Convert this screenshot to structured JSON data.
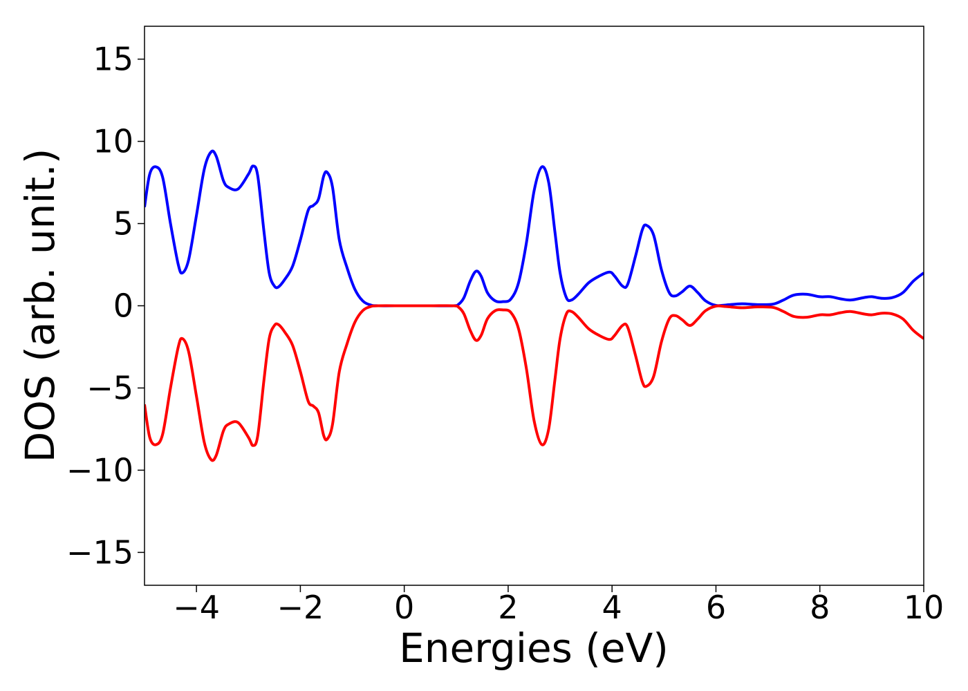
{
  "chart_data": {
    "type": "line",
    "title": "",
    "xlabel": "Energies (eV)",
    "ylabel": "DOS (arb. unit.)",
    "xlim": [
      -5,
      10
    ],
    "ylim": [
      -17,
      17
    ],
    "x_ticks": [
      -4,
      -2,
      0,
      2,
      4,
      6,
      8,
      10
    ],
    "x_tick_labels": [
      "−4",
      "−2",
      "0",
      "2",
      "4",
      "6",
      "8",
      "10"
    ],
    "y_ticks": [
      -15,
      -10,
      -5,
      0,
      5,
      10,
      15
    ],
    "y_tick_labels": [
      "−15",
      "−10",
      "−5",
      "0",
      "5",
      "10",
      "15"
    ],
    "grid": false,
    "legend": "none",
    "series": [
      {
        "color": "#0000ff",
        "points": [
          [
            -5.0,
            6.0
          ],
          [
            -4.9,
            8.0
          ],
          [
            -4.78,
            8.45
          ],
          [
            -4.65,
            7.8
          ],
          [
            -4.5,
            5.0
          ],
          [
            -4.35,
            2.5
          ],
          [
            -4.27,
            2.0
          ],
          [
            -4.15,
            2.8
          ],
          [
            -4.0,
            5.5
          ],
          [
            -3.85,
            8.3
          ],
          [
            -3.72,
            9.35
          ],
          [
            -3.62,
            9.1
          ],
          [
            -3.48,
            7.6
          ],
          [
            -3.38,
            7.2
          ],
          [
            -3.2,
            7.1
          ],
          [
            -3.0,
            8.0
          ],
          [
            -2.91,
            8.5
          ],
          [
            -2.82,
            7.9
          ],
          [
            -2.7,
            4.5
          ],
          [
            -2.6,
            2.0
          ],
          [
            -2.5,
            1.2
          ],
          [
            -2.42,
            1.15
          ],
          [
            -2.3,
            1.6
          ],
          [
            -2.15,
            2.4
          ],
          [
            -2.0,
            4.0
          ],
          [
            -1.85,
            5.8
          ],
          [
            -1.75,
            6.1
          ],
          [
            -1.65,
            6.5
          ],
          [
            -1.55,
            7.9
          ],
          [
            -1.48,
            8.1
          ],
          [
            -1.38,
            7.2
          ],
          [
            -1.25,
            4.0
          ],
          [
            -1.1,
            2.3
          ],
          [
            -0.95,
            1.0
          ],
          [
            -0.8,
            0.3
          ],
          [
            -0.65,
            0.05
          ],
          [
            -0.5,
            0.0
          ],
          [
            0.0,
            0.0
          ],
          [
            0.5,
            0.0
          ],
          [
            0.95,
            0.0
          ],
          [
            1.05,
            0.1
          ],
          [
            1.15,
            0.5
          ],
          [
            1.27,
            1.5
          ],
          [
            1.38,
            2.1
          ],
          [
            1.48,
            1.8
          ],
          [
            1.6,
            0.8
          ],
          [
            1.75,
            0.3
          ],
          [
            1.9,
            0.25
          ],
          [
            2.05,
            0.4
          ],
          [
            2.2,
            1.4
          ],
          [
            2.35,
            3.8
          ],
          [
            2.5,
            7.0
          ],
          [
            2.65,
            8.45
          ],
          [
            2.78,
            7.5
          ],
          [
            2.9,
            4.5
          ],
          [
            3.0,
            2.0
          ],
          [
            3.12,
            0.5
          ],
          [
            3.22,
            0.35
          ],
          [
            3.35,
            0.7
          ],
          [
            3.55,
            1.4
          ],
          [
            3.75,
            1.8
          ],
          [
            3.95,
            2.05
          ],
          [
            4.05,
            1.8
          ],
          [
            4.2,
            1.2
          ],
          [
            4.3,
            1.3
          ],
          [
            4.45,
            3.0
          ],
          [
            4.58,
            4.6
          ],
          [
            4.66,
            4.9
          ],
          [
            4.8,
            4.3
          ],
          [
            4.95,
            2.2
          ],
          [
            5.1,
            0.8
          ],
          [
            5.22,
            0.6
          ],
          [
            5.35,
            0.85
          ],
          [
            5.5,
            1.2
          ],
          [
            5.65,
            0.8
          ],
          [
            5.8,
            0.3
          ],
          [
            6.0,
            0.02
          ],
          [
            6.2,
            0.05
          ],
          [
            6.5,
            0.12
          ],
          [
            6.8,
            0.07
          ],
          [
            7.1,
            0.1
          ],
          [
            7.3,
            0.35
          ],
          [
            7.5,
            0.65
          ],
          [
            7.75,
            0.7
          ],
          [
            8.0,
            0.55
          ],
          [
            8.2,
            0.55
          ],
          [
            8.4,
            0.42
          ],
          [
            8.6,
            0.35
          ],
          [
            8.85,
            0.5
          ],
          [
            9.0,
            0.55
          ],
          [
            9.2,
            0.45
          ],
          [
            9.4,
            0.5
          ],
          [
            9.6,
            0.8
          ],
          [
            9.8,
            1.5
          ],
          [
            10.0,
            2.0
          ]
        ]
      },
      {
        "color": "#ff0000",
        "points": [
          [
            -5.0,
            -6.0
          ],
          [
            -4.9,
            -8.0
          ],
          [
            -4.78,
            -8.45
          ],
          [
            -4.65,
            -7.8
          ],
          [
            -4.5,
            -5.0
          ],
          [
            -4.35,
            -2.5
          ],
          [
            -4.27,
            -2.0
          ],
          [
            -4.15,
            -2.8
          ],
          [
            -4.0,
            -5.5
          ],
          [
            -3.85,
            -8.3
          ],
          [
            -3.72,
            -9.35
          ],
          [
            -3.62,
            -9.1
          ],
          [
            -3.48,
            -7.6
          ],
          [
            -3.38,
            -7.2
          ],
          [
            -3.2,
            -7.1
          ],
          [
            -3.0,
            -8.0
          ],
          [
            -2.91,
            -8.5
          ],
          [
            -2.82,
            -7.9
          ],
          [
            -2.7,
            -4.5
          ],
          [
            -2.6,
            -2.0
          ],
          [
            -2.5,
            -1.2
          ],
          [
            -2.42,
            -1.15
          ],
          [
            -2.3,
            -1.6
          ],
          [
            -2.15,
            -2.4
          ],
          [
            -2.0,
            -4.0
          ],
          [
            -1.85,
            -5.8
          ],
          [
            -1.75,
            -6.1
          ],
          [
            -1.65,
            -6.5
          ],
          [
            -1.55,
            -7.9
          ],
          [
            -1.48,
            -8.1
          ],
          [
            -1.38,
            -7.2
          ],
          [
            -1.25,
            -4.0
          ],
          [
            -1.1,
            -2.3
          ],
          [
            -0.95,
            -1.0
          ],
          [
            -0.8,
            -0.3
          ],
          [
            -0.65,
            -0.05
          ],
          [
            -0.5,
            0.0
          ],
          [
            0.0,
            0.0
          ],
          [
            0.5,
            0.0
          ],
          [
            0.95,
            0.0
          ],
          [
            1.05,
            -0.1
          ],
          [
            1.15,
            -0.5
          ],
          [
            1.27,
            -1.5
          ],
          [
            1.38,
            -2.1
          ],
          [
            1.48,
            -1.8
          ],
          [
            1.6,
            -0.8
          ],
          [
            1.75,
            -0.3
          ],
          [
            1.9,
            -0.25
          ],
          [
            2.05,
            -0.4
          ],
          [
            2.2,
            -1.4
          ],
          [
            2.35,
            -3.8
          ],
          [
            2.5,
            -7.0
          ],
          [
            2.65,
            -8.45
          ],
          [
            2.78,
            -7.5
          ],
          [
            2.9,
            -4.5
          ],
          [
            3.0,
            -2.0
          ],
          [
            3.12,
            -0.5
          ],
          [
            3.22,
            -0.35
          ],
          [
            3.35,
            -0.7
          ],
          [
            3.55,
            -1.4
          ],
          [
            3.75,
            -1.8
          ],
          [
            3.95,
            -2.05
          ],
          [
            4.05,
            -1.8
          ],
          [
            4.2,
            -1.2
          ],
          [
            4.3,
            -1.3
          ],
          [
            4.45,
            -3.0
          ],
          [
            4.58,
            -4.6
          ],
          [
            4.66,
            -4.9
          ],
          [
            4.8,
            -4.3
          ],
          [
            4.95,
            -2.2
          ],
          [
            5.1,
            -0.8
          ],
          [
            5.22,
            -0.6
          ],
          [
            5.35,
            -0.85
          ],
          [
            5.5,
            -1.2
          ],
          [
            5.65,
            -0.8
          ],
          [
            5.8,
            -0.3
          ],
          [
            6.0,
            -0.02
          ],
          [
            6.2,
            -0.05
          ],
          [
            6.5,
            -0.12
          ],
          [
            6.8,
            -0.07
          ],
          [
            7.1,
            -0.1
          ],
          [
            7.3,
            -0.35
          ],
          [
            7.5,
            -0.65
          ],
          [
            7.75,
            -0.7
          ],
          [
            8.0,
            -0.55
          ],
          [
            8.2,
            -0.55
          ],
          [
            8.4,
            -0.42
          ],
          [
            8.6,
            -0.35
          ],
          [
            8.85,
            -0.5
          ],
          [
            9.0,
            -0.55
          ],
          [
            9.2,
            -0.45
          ],
          [
            9.4,
            -0.5
          ],
          [
            9.6,
            -0.8
          ],
          [
            9.8,
            -1.5
          ],
          [
            10.0,
            -2.0
          ]
        ]
      }
    ]
  }
}
